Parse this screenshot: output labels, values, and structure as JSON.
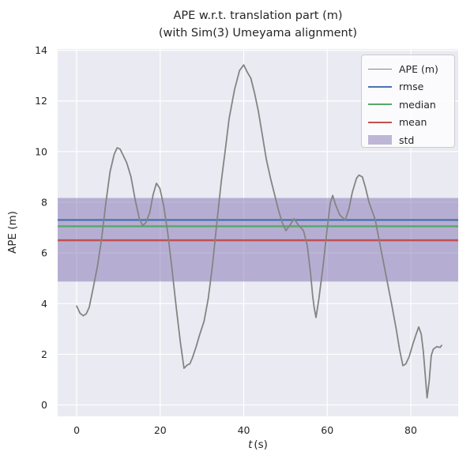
{
  "figure": {
    "title_line1": "APE w.r.t. translation part (m)",
    "title_line2": "(with Sim(3) Umeyama alignment)",
    "ylabel": "APE (m)",
    "xlabel_var": "t",
    "xlabel_unit": "(s)",
    "background_color": "#ffffff",
    "plot_background_color": "#eaeaf2",
    "grid_color": "#ffffff",
    "text_color": "#262626"
  },
  "chart_data": {
    "type": "line",
    "title": "APE w.r.t. translation part (m)\n(with Sim(3) Umeyama alignment)",
    "xlabel": "t (s)",
    "ylabel": "APE (m)",
    "xlim": [
      -4.55,
      91.35
    ],
    "ylim": [
      -0.45,
      14.05
    ],
    "xticks": [
      0,
      20,
      40,
      60,
      80
    ],
    "yticks": [
      0,
      2,
      4,
      6,
      8,
      10,
      12,
      14
    ],
    "grid": true,
    "legend_position": "upper right",
    "stats": {
      "rmse": 7.3,
      "median": 7.05,
      "mean": 6.5,
      "std": 1.65
    },
    "series": [
      {
        "name": "APE (m)",
        "kind": "line",
        "color": "#848484",
        "width": 1.8,
        "points": [
          [
            0,
            3.9
          ],
          [
            0.8,
            3.62
          ],
          [
            1.6,
            3.52
          ],
          [
            2.3,
            3.6
          ],
          [
            3,
            3.85
          ],
          [
            4,
            4.65
          ],
          [
            5,
            5.5
          ],
          [
            6,
            6.6
          ],
          [
            7,
            8.0
          ],
          [
            8,
            9.2
          ],
          [
            9,
            9.9
          ],
          [
            9.7,
            10.15
          ],
          [
            10.4,
            10.1
          ],
          [
            11,
            9.9
          ],
          [
            12,
            9.55
          ],
          [
            13,
            9.0
          ],
          [
            14,
            8.1
          ],
          [
            15,
            7.35
          ],
          [
            15.8,
            7.08
          ],
          [
            16.6,
            7.2
          ],
          [
            17.5,
            7.6
          ],
          [
            18.3,
            8.3
          ],
          [
            19.1,
            8.75
          ],
          [
            19.9,
            8.55
          ],
          [
            20.8,
            7.9
          ],
          [
            21.8,
            6.8
          ],
          [
            22.8,
            5.4
          ],
          [
            23.8,
            3.9
          ],
          [
            24.8,
            2.5
          ],
          [
            25.7,
            1.45
          ],
          [
            26.5,
            1.58
          ],
          [
            27.1,
            1.62
          ],
          [
            27.7,
            1.85
          ],
          [
            28.6,
            2.3
          ],
          [
            29.5,
            2.8
          ],
          [
            30.5,
            3.3
          ],
          [
            31.5,
            4.2
          ],
          [
            32.5,
            5.5
          ],
          [
            33.5,
            7.1
          ],
          [
            34.6,
            8.8
          ],
          [
            35.6,
            10.1
          ],
          [
            36.5,
            11.3
          ],
          [
            37.8,
            12.45
          ],
          [
            39,
            13.2
          ],
          [
            40,
            13.42
          ],
          [
            40.8,
            13.15
          ],
          [
            41.7,
            12.9
          ],
          [
            42.6,
            12.3
          ],
          [
            43.5,
            11.6
          ],
          [
            44.4,
            10.7
          ],
          [
            45.4,
            9.7
          ],
          [
            46.4,
            8.95
          ],
          [
            47.4,
            8.3
          ],
          [
            48.3,
            7.7
          ],
          [
            49.2,
            7.2
          ],
          [
            50.1,
            6.88
          ],
          [
            51,
            7.08
          ],
          [
            52,
            7.35
          ],
          [
            53,
            7.12
          ],
          [
            54.3,
            6.88
          ],
          [
            55.2,
            6.3
          ],
          [
            56,
            5.2
          ],
          [
            56.5,
            4.3
          ],
          [
            56.9,
            3.8
          ],
          [
            57.3,
            3.45
          ],
          [
            58,
            4.2
          ],
          [
            59,
            5.5
          ],
          [
            60,
            7.0
          ],
          [
            60.7,
            7.95
          ],
          [
            61.3,
            8.27
          ],
          [
            62,
            7.9
          ],
          [
            63,
            7.5
          ],
          [
            64.3,
            7.3
          ],
          [
            65.2,
            7.75
          ],
          [
            66,
            8.4
          ],
          [
            67,
            8.95
          ],
          [
            67.6,
            9.07
          ],
          [
            68.4,
            9.0
          ],
          [
            69.2,
            8.55
          ],
          [
            70,
            8.0
          ],
          [
            71.5,
            7.3
          ],
          [
            72.5,
            6.45
          ],
          [
            73.5,
            5.6
          ],
          [
            74.5,
            4.75
          ],
          [
            75.5,
            3.9
          ],
          [
            76.5,
            3.0
          ],
          [
            77.3,
            2.2
          ],
          [
            78.1,
            1.55
          ],
          [
            78.8,
            1.62
          ],
          [
            79.6,
            1.9
          ],
          [
            80.5,
            2.4
          ],
          [
            81.2,
            2.75
          ],
          [
            81.9,
            3.08
          ],
          [
            82.5,
            2.8
          ],
          [
            83,
            2.1
          ],
          [
            83.5,
            1.1
          ],
          [
            83.9,
            0.28
          ],
          [
            84.4,
            0.95
          ],
          [
            84.9,
            1.95
          ],
          [
            85.4,
            2.2
          ],
          [
            86.2,
            2.3
          ],
          [
            87,
            2.27
          ],
          [
            87.4,
            2.35
          ]
        ]
      },
      {
        "name": "rmse",
        "kind": "hline",
        "color": "#4c72b0",
        "width": 2.4,
        "value": 7.3
      },
      {
        "name": "median",
        "kind": "hline",
        "color": "#55a868",
        "width": 2.4,
        "value": 7.05
      },
      {
        "name": "mean",
        "kind": "hline",
        "color": "#c44e52",
        "width": 2.4,
        "value": 6.5
      },
      {
        "name": "std",
        "kind": "band",
        "color": "#8172b2",
        "opacity": 0.5,
        "range": [
          4.87,
          8.17
        ]
      }
    ]
  }
}
